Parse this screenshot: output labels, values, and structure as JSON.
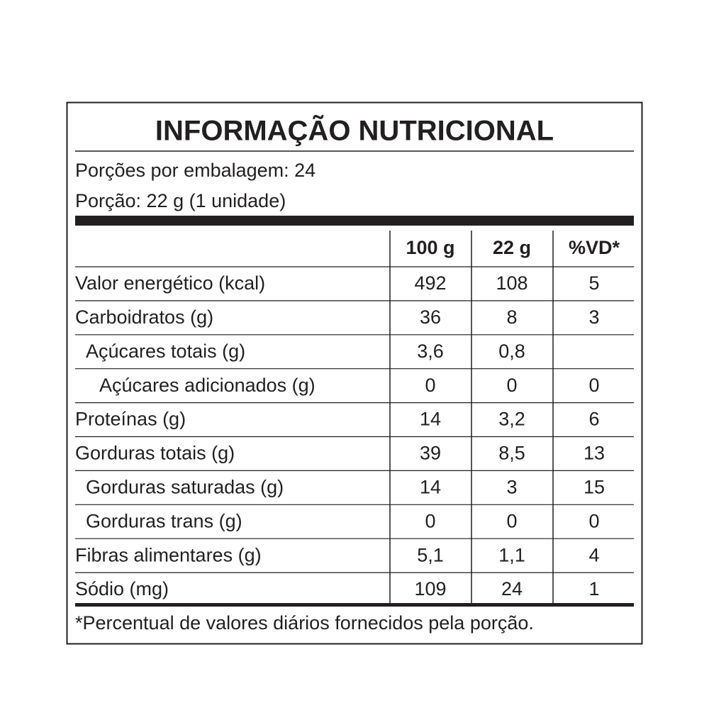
{
  "title": "INFORMAÇÃO NUTRICIONAL",
  "servings_per_package": "Porções por embalagem: 24",
  "serving_size": "Porção: 22 g (1 unidade)",
  "table": {
    "headers": [
      "100 g",
      "22 g",
      "%VD*"
    ],
    "rows": [
      [
        "Valor energético (kcal)",
        "492",
        "108",
        "5"
      ],
      [
        "Carboidratos (g)",
        "36",
        "8",
        "3"
      ],
      [
        "Açúcares totais (g)",
        "3,6",
        "0,8",
        null
      ],
      [
        "Açúcares adicionados (g)",
        "0",
        "0",
        "0"
      ],
      [
        "Proteínas (g)",
        "14",
        "3,2",
        "6"
      ],
      [
        "Gorduras totais (g)",
        "39",
        "8,5",
        "13"
      ],
      [
        "Gorduras saturadas (g)",
        "14",
        "3",
        "15"
      ],
      [
        "Gorduras trans (g)",
        "0",
        "0",
        "0"
      ],
      [
        "Fibras alimentares (g)",
        "5,1",
        "1,1",
        "4"
      ],
      [
        "Sódio (mg)",
        "109",
        "24",
        "1"
      ]
    ]
  },
  "footnote": "*Percentual de valores diários fornecidos pela porção."
}
